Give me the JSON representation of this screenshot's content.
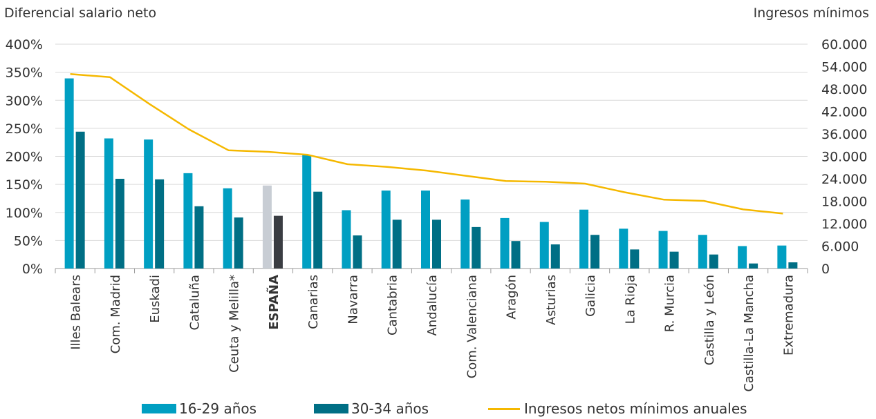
{
  "chart_data": {
    "type": "bar",
    "y_left_label": "Diferencial salario neto",
    "y_right_label": "Ingresos mínimos",
    "categories": [
      "Illes Balears",
      "Com. Madrid",
      "Euskadi",
      "Cataluña",
      "Ceuta y Melilla*",
      "ESPAÑA",
      "Canarias",
      "Navarra",
      "Cantabria",
      "Andalucía",
      "Com. Valenciana",
      "Aragón",
      "Asturias",
      "Galicia",
      "La Rioja",
      "R. Murcia",
      "Castilla y León",
      "Castilla-La Mancha",
      "Extremadura"
    ],
    "highlight_category": "ESPAÑA",
    "y_left_ticks": [
      "400%",
      "350%",
      "300%",
      "250%",
      "200%",
      "150%",
      "100%",
      "50%",
      "0%"
    ],
    "y_left_range": [
      0,
      400
    ],
    "y_right_ticks": [
      "60.000",
      "54.000",
      "48.000",
      "42.000",
      "36.000",
      "30.000",
      "24.000",
      "18.000",
      "12.000",
      "6.000",
      "0"
    ],
    "y_right_range": [
      0,
      60000
    ],
    "series": [
      {
        "name": "16-29 años",
        "type": "bar",
        "axis": "left",
        "color": "#009fc2",
        "highlight_color": "#c8cdd4",
        "values": [
          339,
          232,
          230,
          170,
          143,
          148,
          202,
          104,
          139,
          139,
          123,
          90,
          83,
          105,
          71,
          67,
          60,
          40,
          41
        ]
      },
      {
        "name": "30-34 años",
        "type": "bar",
        "axis": "left",
        "color": "#006f85",
        "highlight_color": "#3a3d42",
        "values": [
          244,
          160,
          159,
          111,
          91,
          94,
          137,
          59,
          87,
          87,
          74,
          49,
          43,
          60,
          34,
          30,
          25,
          9,
          11
        ]
      },
      {
        "name": "Ingresos netos mínimos anuales",
        "type": "line",
        "axis": "right",
        "color": "#f5b800",
        "values": [
          52000,
          51200,
          44000,
          37200,
          31600,
          31200,
          30400,
          27900,
          27200,
          26200,
          24800,
          23400,
          23200,
          22700,
          20400,
          18400,
          18100,
          15800,
          14700
        ]
      }
    ],
    "grid": true,
    "legend_position": "bottom"
  }
}
